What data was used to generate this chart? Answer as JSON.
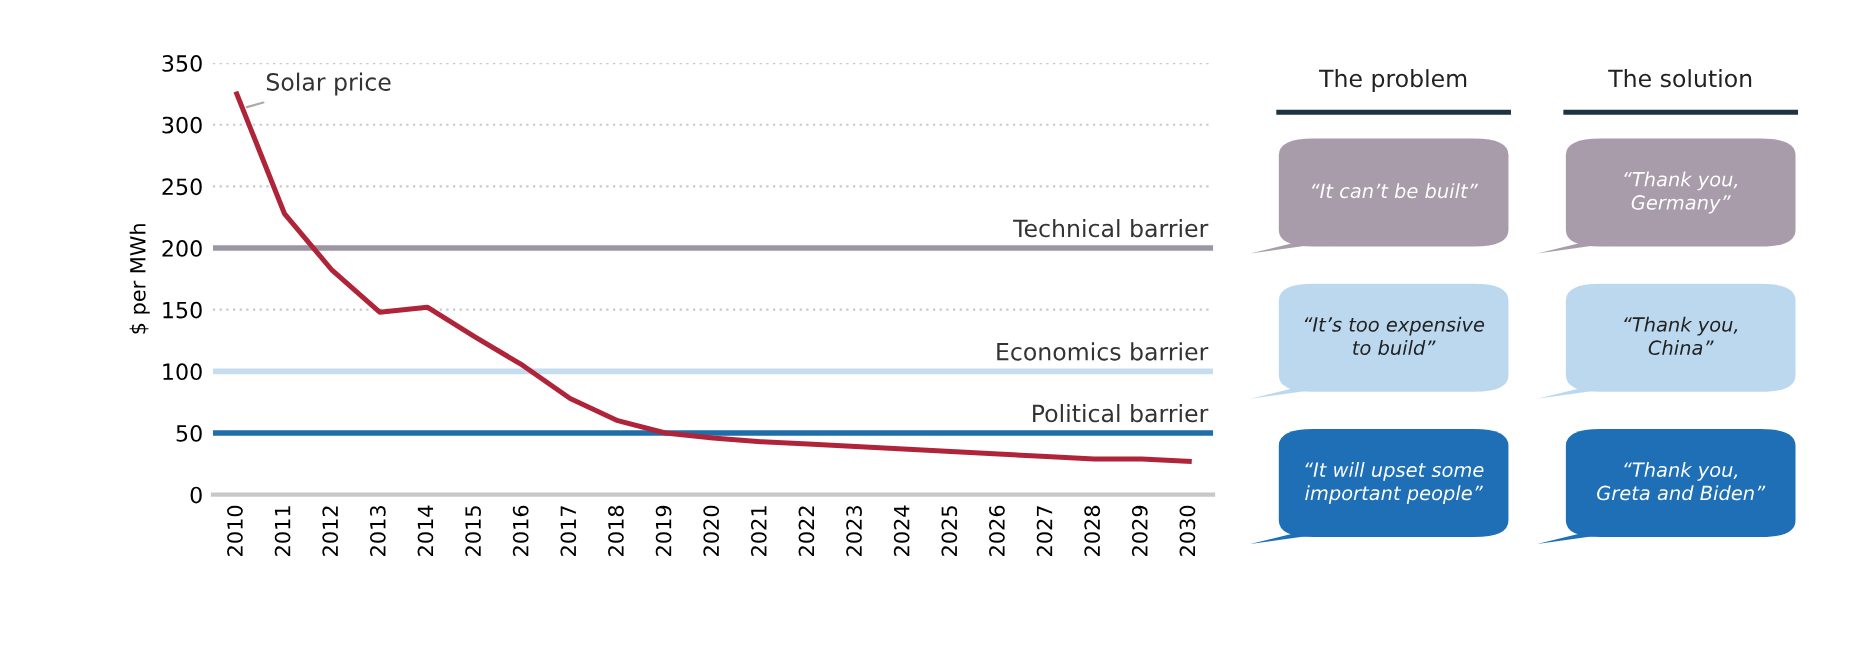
{
  "chart_data": [
    {
      "type": "line",
      "ylabel": "$ per MWh",
      "categories": [
        "2010",
        "2011",
        "2012",
        "2013",
        "2014",
        "2015",
        "2016",
        "2017",
        "2018",
        "2019",
        "2020",
        "2021",
        "2022",
        "2023",
        "2024",
        "2025",
        "2026",
        "2027",
        "2028",
        "2029",
        "2030"
      ],
      "series": [
        {
          "name": "Solar price",
          "color": "#b0243a",
          "values": [
            325,
            228,
            182,
            148,
            152,
            128,
            105,
            78,
            60,
            50,
            46,
            43,
            41,
            39,
            37,
            35,
            33,
            31,
            29,
            29,
            27
          ]
        }
      ],
      "ylim": [
        0,
        350
      ],
      "yticks": [
        0,
        50,
        100,
        150,
        200,
        250,
        300,
        350
      ],
      "grid": "y",
      "marker": "none",
      "line_style": "solid",
      "ref_lines": [
        {
          "axis": "y",
          "value": 200,
          "label": "Technical barrier",
          "color": "#9a96a3"
        },
        {
          "axis": "y",
          "value": 100,
          "label": "Economics barrier",
          "color": "#c6ddef"
        },
        {
          "axis": "y",
          "value": 50,
          "label": "Political barrier",
          "color": "#1f6ea8"
        }
      ]
    },
    {
      "type": "other",
      "categories": [
        "The problem",
        "The solution"
      ],
      "annotations": [
        "“It can’t be built”",
        "“Thank you,\nGermany”",
        "“It’s too expensive\nto build”",
        "“Thank you,\nChina”",
        "“It will upset some\nimportant people”",
        "“Thank you,\nGreta and Biden”"
      ],
      "colors": [
        "#a89cab",
        "#a89cab",
        "#bcd8ee",
        "#bcd8ee",
        "#1e6fb6",
        "#1e6fb6"
      ]
    }
  ]
}
